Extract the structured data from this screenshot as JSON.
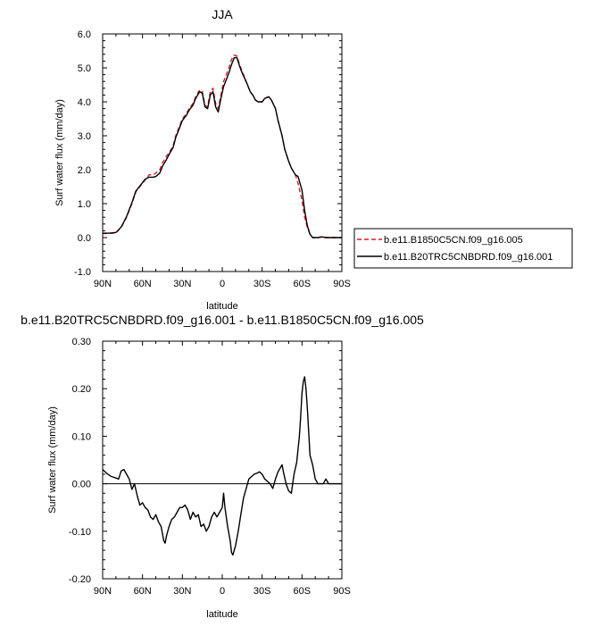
{
  "chart_data": [
    {
      "type": "line",
      "title": "JJA",
      "xlabel": "latitude",
      "ylabel": "Surf water flux (mm/day)",
      "xlim": [
        -90,
        90
      ],
      "ylim": [
        -1.0,
        6.0
      ],
      "x_ticks": [
        -90,
        -60,
        -30,
        0,
        30,
        60,
        90
      ],
      "x_tick_labels": [
        "90N",
        "60N",
        "30N",
        "0",
        "30S",
        "60S",
        "90S"
      ],
      "y_ticks": [
        -1.0,
        0.0,
        1.0,
        2.0,
        3.0,
        4.0,
        5.0,
        6.0
      ],
      "y_tick_labels": [
        "-1.0",
        "0.0",
        "1.0",
        "2.0",
        "3.0",
        "4.0",
        "5.0",
        "6.0"
      ],
      "legend_position": "right",
      "x": [
        -90,
        -85,
        -80,
        -76,
        -72,
        -68,
        -65,
        -62,
        -60,
        -58,
        -55,
        -52,
        -50,
        -47,
        -45,
        -42,
        -40,
        -37,
        -35,
        -32,
        -30,
        -27,
        -25,
        -22,
        -20,
        -17,
        -15,
        -13,
        -11,
        -9,
        -7,
        -5,
        -3,
        -1,
        1,
        3,
        5,
        7,
        9,
        11,
        13,
        15,
        17,
        19,
        21,
        23,
        25,
        27,
        30,
        32,
        35,
        37,
        40,
        42,
        45,
        47,
        50,
        52,
        55,
        57,
        60,
        62,
        64,
        66,
        68,
        70,
        72,
        75,
        78,
        80,
        85,
        90
      ],
      "series": [
        {
          "name": "b.e11.B1850C5CN.f09_g16.005",
          "color": "#d21e2a",
          "dash": "dashed",
          "values": [
            0.12,
            0.12,
            0.14,
            0.3,
            0.6,
            1.0,
            1.35,
            1.5,
            1.6,
            1.7,
            1.85,
            1.85,
            1.9,
            2.0,
            2.2,
            2.4,
            2.5,
            2.7,
            3.0,
            3.3,
            3.5,
            3.65,
            3.8,
            3.95,
            4.15,
            4.35,
            4.3,
            3.9,
            3.85,
            4.3,
            4.4,
            3.95,
            3.8,
            4.2,
            4.6,
            4.8,
            5.0,
            5.25,
            5.38,
            5.35,
            5.1,
            4.9,
            4.7,
            4.5,
            4.3,
            4.2,
            4.05,
            4.0,
            4.0,
            4.1,
            4.15,
            4.05,
            3.8,
            3.45,
            3.0,
            2.6,
            2.25,
            2.05,
            1.85,
            1.6,
            1.1,
            0.6,
            0.3,
            0.1,
            0.0,
            0.0,
            0.0,
            0.02,
            0.0,
            0.0,
            0.0,
            0.0
          ]
        },
        {
          "name": "b.e11.B20TRC5CNBDRD.f09_g16.001",
          "color": "#000000",
          "dash": "solid",
          "values": [
            0.13,
            0.13,
            0.15,
            0.31,
            0.62,
            1.03,
            1.37,
            1.52,
            1.62,
            1.72,
            1.78,
            1.78,
            1.8,
            1.9,
            2.1,
            2.3,
            2.45,
            2.65,
            2.95,
            3.25,
            3.45,
            3.6,
            3.75,
            3.9,
            4.1,
            4.3,
            4.25,
            3.85,
            3.8,
            4.2,
            4.3,
            3.85,
            3.7,
            4.1,
            4.45,
            4.65,
            4.85,
            5.1,
            5.3,
            5.3,
            5.05,
            4.85,
            4.68,
            4.5,
            4.3,
            4.2,
            4.05,
            4.0,
            4.0,
            4.1,
            4.15,
            4.05,
            3.8,
            3.45,
            3.0,
            2.6,
            2.25,
            2.05,
            1.85,
            1.8,
            1.4,
            0.8,
            0.35,
            0.1,
            0.0,
            0.0,
            0.0,
            0.02,
            0.0,
            0.0,
            0.0,
            0.0
          ]
        }
      ]
    },
    {
      "type": "line",
      "title": "b.e11.B20TRC5CNBDRD.f09_g16.001 - b.e11.B1850C5CN.f09_g16.005",
      "xlabel": "latitude",
      "ylabel": "Surf water flux (mm/day)",
      "xlim": [
        -90,
        90
      ],
      "ylim": [
        -0.2,
        0.3
      ],
      "x_ticks": [
        -90,
        -60,
        -30,
        0,
        30,
        60,
        90
      ],
      "x_tick_labels": [
        "90N",
        "60N",
        "30N",
        "0",
        "30S",
        "60S",
        "90S"
      ],
      "y_ticks": [
        -0.2,
        -0.1,
        0.0,
        0.1,
        0.2,
        0.3
      ],
      "y_tick_labels": [
        "-0.20",
        "-0.10",
        "0.00",
        "0.10",
        "0.20",
        "0.30"
      ],
      "x": [
        -90,
        -87,
        -84,
        -81,
        -78,
        -76,
        -74,
        -72,
        -70,
        -68,
        -66,
        -64,
        -62,
        -60,
        -58,
        -56,
        -54,
        -52,
        -50,
        -48,
        -46,
        -44,
        -43,
        -42,
        -40,
        -38,
        -36,
        -34,
        -32,
        -30,
        -28,
        -26,
        -24,
        -22,
        -20,
        -18,
        -16,
        -14,
        -12,
        -10,
        -8,
        -6,
        -4,
        -2,
        0,
        1,
        2,
        4,
        6,
        7,
        8,
        10,
        12,
        14,
        16,
        18,
        20,
        22,
        24,
        26,
        28,
        30,
        32,
        34,
        36,
        38,
        40,
        42,
        44,
        45,
        46,
        48,
        50,
        52,
        54,
        56,
        58,
        59,
        60,
        61,
        62,
        63,
        64,
        66,
        68,
        70,
        72,
        74,
        76,
        78,
        80,
        85,
        90
      ],
      "series": [
        {
          "name": "",
          "color": "#000000",
          "dash": "solid",
          "values": [
            0.03,
            0.022,
            0.016,
            0.013,
            0.01,
            0.027,
            0.03,
            0.02,
            0.01,
            -0.012,
            0.0,
            -0.025,
            -0.045,
            -0.04,
            -0.05,
            -0.055,
            -0.07,
            -0.075,
            -0.065,
            -0.08,
            -0.09,
            -0.12,
            -0.125,
            -0.11,
            -0.09,
            -0.075,
            -0.07,
            -0.06,
            -0.05,
            -0.05,
            -0.045,
            -0.055,
            -0.075,
            -0.06,
            -0.07,
            -0.065,
            -0.09,
            -0.085,
            -0.1,
            -0.09,
            -0.07,
            -0.06,
            -0.07,
            -0.06,
            -0.05,
            -0.02,
            -0.05,
            -0.09,
            -0.12,
            -0.145,
            -0.15,
            -0.13,
            -0.1,
            -0.065,
            -0.03,
            -0.01,
            0.01,
            0.015,
            0.02,
            0.022,
            0.025,
            0.02,
            0.01,
            0.005,
            0.0,
            -0.01,
            0.01,
            0.025,
            0.035,
            0.04,
            0.025,
            0.0,
            -0.015,
            -0.02,
            0.02,
            0.045,
            0.1,
            0.14,
            0.19,
            0.215,
            0.225,
            0.2,
            0.16,
            0.06,
            0.04,
            0.01,
            0.0,
            0.0,
            0.0,
            0.01,
            0.0,
            0.0,
            0.0
          ]
        }
      ]
    }
  ]
}
